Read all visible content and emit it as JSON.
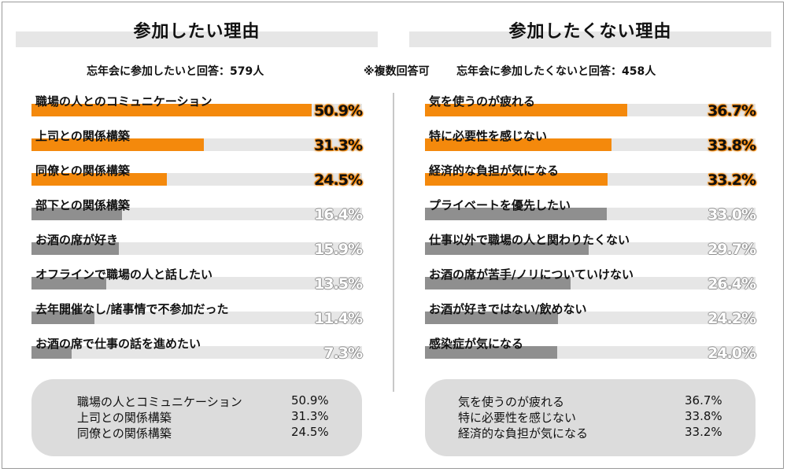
{
  "note": "※複数回答可",
  "panels": [
    {
      "title": "参加したい理由",
      "respondents": "忘年会に参加したいと回答：579人",
      "items": [
        {
          "label": "職場の人とのコミュニケーション",
          "value": 50.9,
          "display": "50.9%",
          "color": "orange"
        },
        {
          "label": "上司との関係構築",
          "value": 31.3,
          "display": "31.3%",
          "color": "orange"
        },
        {
          "label": "同僚との関係構築",
          "value": 24.5,
          "display": "24.5%",
          "color": "orange"
        },
        {
          "label": "部下との関係構築",
          "value": 16.4,
          "display": "16.4%",
          "color": "gray"
        },
        {
          "label": "お酒の席が好き",
          "value": 15.9,
          "display": "15.9%",
          "color": "gray"
        },
        {
          "label": "オフラインで職場の人と話したい",
          "value": 13.5,
          "display": "13.5%",
          "color": "gray"
        },
        {
          "label": "去年開催なし/諸事情で不参加だった",
          "value": 11.4,
          "display": "11.4%",
          "color": "gray"
        },
        {
          "label": "お酒の席で仕事の話を進めたい",
          "value": 7.3,
          "display": "7.3%",
          "color": "gray"
        }
      ],
      "summary": [
        {
          "label": "職場の人とコミュニケーション",
          "value": "50.9%"
        },
        {
          "label": "上司との関係構築",
          "value": "31.3%"
        },
        {
          "label": "同僚との関係構築",
          "value": "24.5%"
        }
      ]
    },
    {
      "title": "参加したくない理由",
      "respondents": "忘年会に参加したくないと回答：458人",
      "items": [
        {
          "label": "気を使うのが疲れる",
          "value": 36.7,
          "display": "36.7%",
          "color": "orange"
        },
        {
          "label": "特に必要性を感じない",
          "value": 33.8,
          "display": "33.8%",
          "color": "orange"
        },
        {
          "label": "経済的な負担が気になる",
          "value": 33.2,
          "display": "33.2%",
          "color": "orange"
        },
        {
          "label": "プライベートを優先したい",
          "value": 33.0,
          "display": "33.0%",
          "color": "gray"
        },
        {
          "label": "仕事以外で職場の人と関わりたくない",
          "value": 29.7,
          "display": "29.7%",
          "color": "gray"
        },
        {
          "label": "お酒の席が苦手/ノリについていけない",
          "value": 26.4,
          "display": "26.4%",
          "color": "gray"
        },
        {
          "label": "お酒が好きではない/飲めない",
          "value": 24.2,
          "display": "24.2%",
          "color": "gray"
        },
        {
          "label": "感染症が気になる",
          "value": 24.0,
          "display": "24.0%",
          "color": "gray"
        }
      ],
      "summary": [
        {
          "label": "気を使うのが疲れる",
          "value": "36.7%"
        },
        {
          "label": "特に必要性を感じない",
          "value": "33.8%"
        },
        {
          "label": "経済的な負担が気になる",
          "value": "33.2%"
        }
      ]
    }
  ],
  "chart_data": [
    {
      "type": "bar",
      "title": "参加したい理由",
      "categories": [
        "職場の人とのコミュニケーション",
        "上司との関係構築",
        "同僚との関係構築",
        "部下との関係構築",
        "お酒の席が好き",
        "オフラインで職場の人と話したい",
        "去年開催なし/諸事情で不参加だった",
        "お酒の席で仕事の話を進めたい"
      ],
      "values": [
        50.9,
        31.3,
        24.5,
        16.4,
        15.9,
        13.5,
        11.4,
        7.3
      ],
      "xlabel": "",
      "ylabel": "",
      "highlight_color": "#f4890c",
      "base_color": "#8f8f8f"
    },
    {
      "type": "bar",
      "title": "参加したくない理由",
      "categories": [
        "気を使うのが疲れる",
        "特に必要性を感じない",
        "経済的な負担が気になる",
        "プライベートを優先したい",
        "仕事以外で職場の人と関わりたくない",
        "お酒の席が苦手/ノリについていけない",
        "お酒が好きではない/飲めない",
        "感染症が気になる"
      ],
      "values": [
        36.7,
        33.8,
        33.2,
        33.0,
        29.7,
        26.4,
        24.2,
        24.0
      ],
      "xlabel": "",
      "ylabel": "",
      "highlight_color": "#f4890c",
      "base_color": "#8f8f8f"
    }
  ]
}
